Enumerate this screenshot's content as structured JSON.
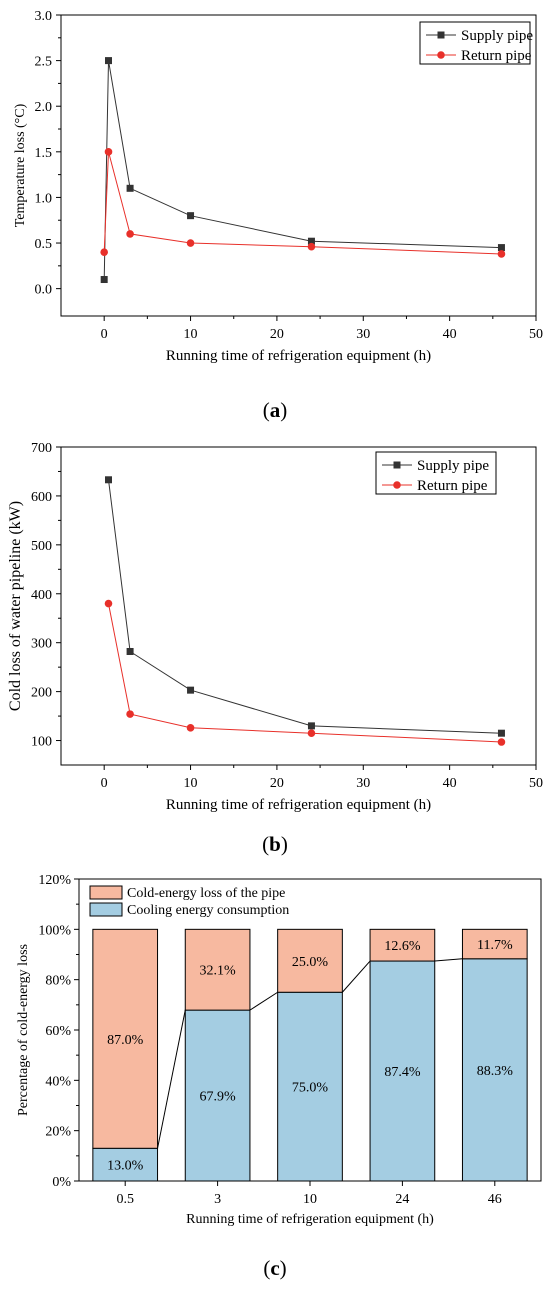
{
  "panels": [
    {
      "label": "a",
      "chart_data": {
        "type": "line",
        "xlabel": "Running time of refrigeration equipment (h)",
        "ylabel": "Temperature loss (°C)",
        "xlim": [
          -5,
          50
        ],
        "ylim": [
          -0.3,
          3.0
        ],
        "xticks": [
          0,
          10,
          20,
          30,
          40,
          50
        ],
        "yticks": [
          0.0,
          0.5,
          1.0,
          1.5,
          2.0,
          2.5,
          3.0
        ],
        "ytick_decimals": 1,
        "legend_position": "top-right",
        "series": [
          {
            "name": "Supply pipe",
            "marker": "square",
            "color": "#333333",
            "points": [
              [
                0,
                0.1
              ],
              [
                0.5,
                2.5
              ],
              [
                3,
                1.1
              ],
              [
                10,
                0.8
              ],
              [
                24,
                0.52
              ],
              [
                46,
                0.45
              ]
            ]
          },
          {
            "name": "Return pipe",
            "marker": "circle",
            "color": "#e8302a",
            "points": [
              [
                0,
                0.4
              ],
              [
                0.5,
                1.5
              ],
              [
                3,
                0.6
              ],
              [
                10,
                0.5
              ],
              [
                24,
                0.46
              ],
              [
                46,
                0.38
              ]
            ]
          }
        ]
      }
    },
    {
      "label": "b",
      "chart_data": {
        "type": "line",
        "xlabel": "Running time of refrigeration equipment (h)",
        "ylabel": "Cold loss of water pipeline (kW)",
        "xlim": [
          -5,
          50
        ],
        "ylim": [
          50,
          700
        ],
        "xticks": [
          0,
          10,
          20,
          30,
          40,
          50
        ],
        "yticks": [
          100,
          200,
          300,
          400,
          500,
          600,
          700
        ],
        "ytick_decimals": 0,
        "legend_position": "top-right",
        "series": [
          {
            "name": "Supply pipe",
            "marker": "square",
            "color": "#333333",
            "points": [
              [
                0.5,
                633
              ],
              [
                3,
                282
              ],
              [
                10,
                203
              ],
              [
                24,
                130
              ],
              [
                46,
                115
              ]
            ]
          },
          {
            "name": "Return pipe",
            "marker": "circle",
            "color": "#e8302a",
            "points": [
              [
                0.5,
                380
              ],
              [
                3,
                154
              ],
              [
                10,
                126
              ],
              [
                24,
                115
              ],
              [
                46,
                97
              ]
            ]
          }
        ]
      }
    },
    {
      "label": "c",
      "chart_data": {
        "type": "bar",
        "stacked": true,
        "xlabel": "Running time of refrigeration equipment (h)",
        "ylabel": "Percentage of cold-energy loss",
        "categories": [
          "0.5",
          "3",
          "10",
          "24",
          "46"
        ],
        "ylim": [
          0,
          120
        ],
        "yticks": [
          0,
          20,
          40,
          60,
          80,
          100,
          120
        ],
        "legend_position": "top-left",
        "series": [
          {
            "name": "Cooling energy consumption",
            "color": "#a4cde2",
            "values": [
              13.0,
              67.9,
              75.0,
              87.4,
              88.3
            ],
            "labels": [
              "13.0%",
              "67.9%",
              "75.0%",
              "87.4%",
              "88.3%"
            ]
          },
          {
            "name": "Cold-energy loss of the pipe",
            "color": "#f7b9a0",
            "values": [
              87.0,
              32.1,
              25.0,
              12.6,
              11.7
            ],
            "labels": [
              "87.0%",
              "32.1%",
              "25.0%",
              "12.6%",
              "11.7%"
            ]
          }
        ]
      }
    }
  ]
}
